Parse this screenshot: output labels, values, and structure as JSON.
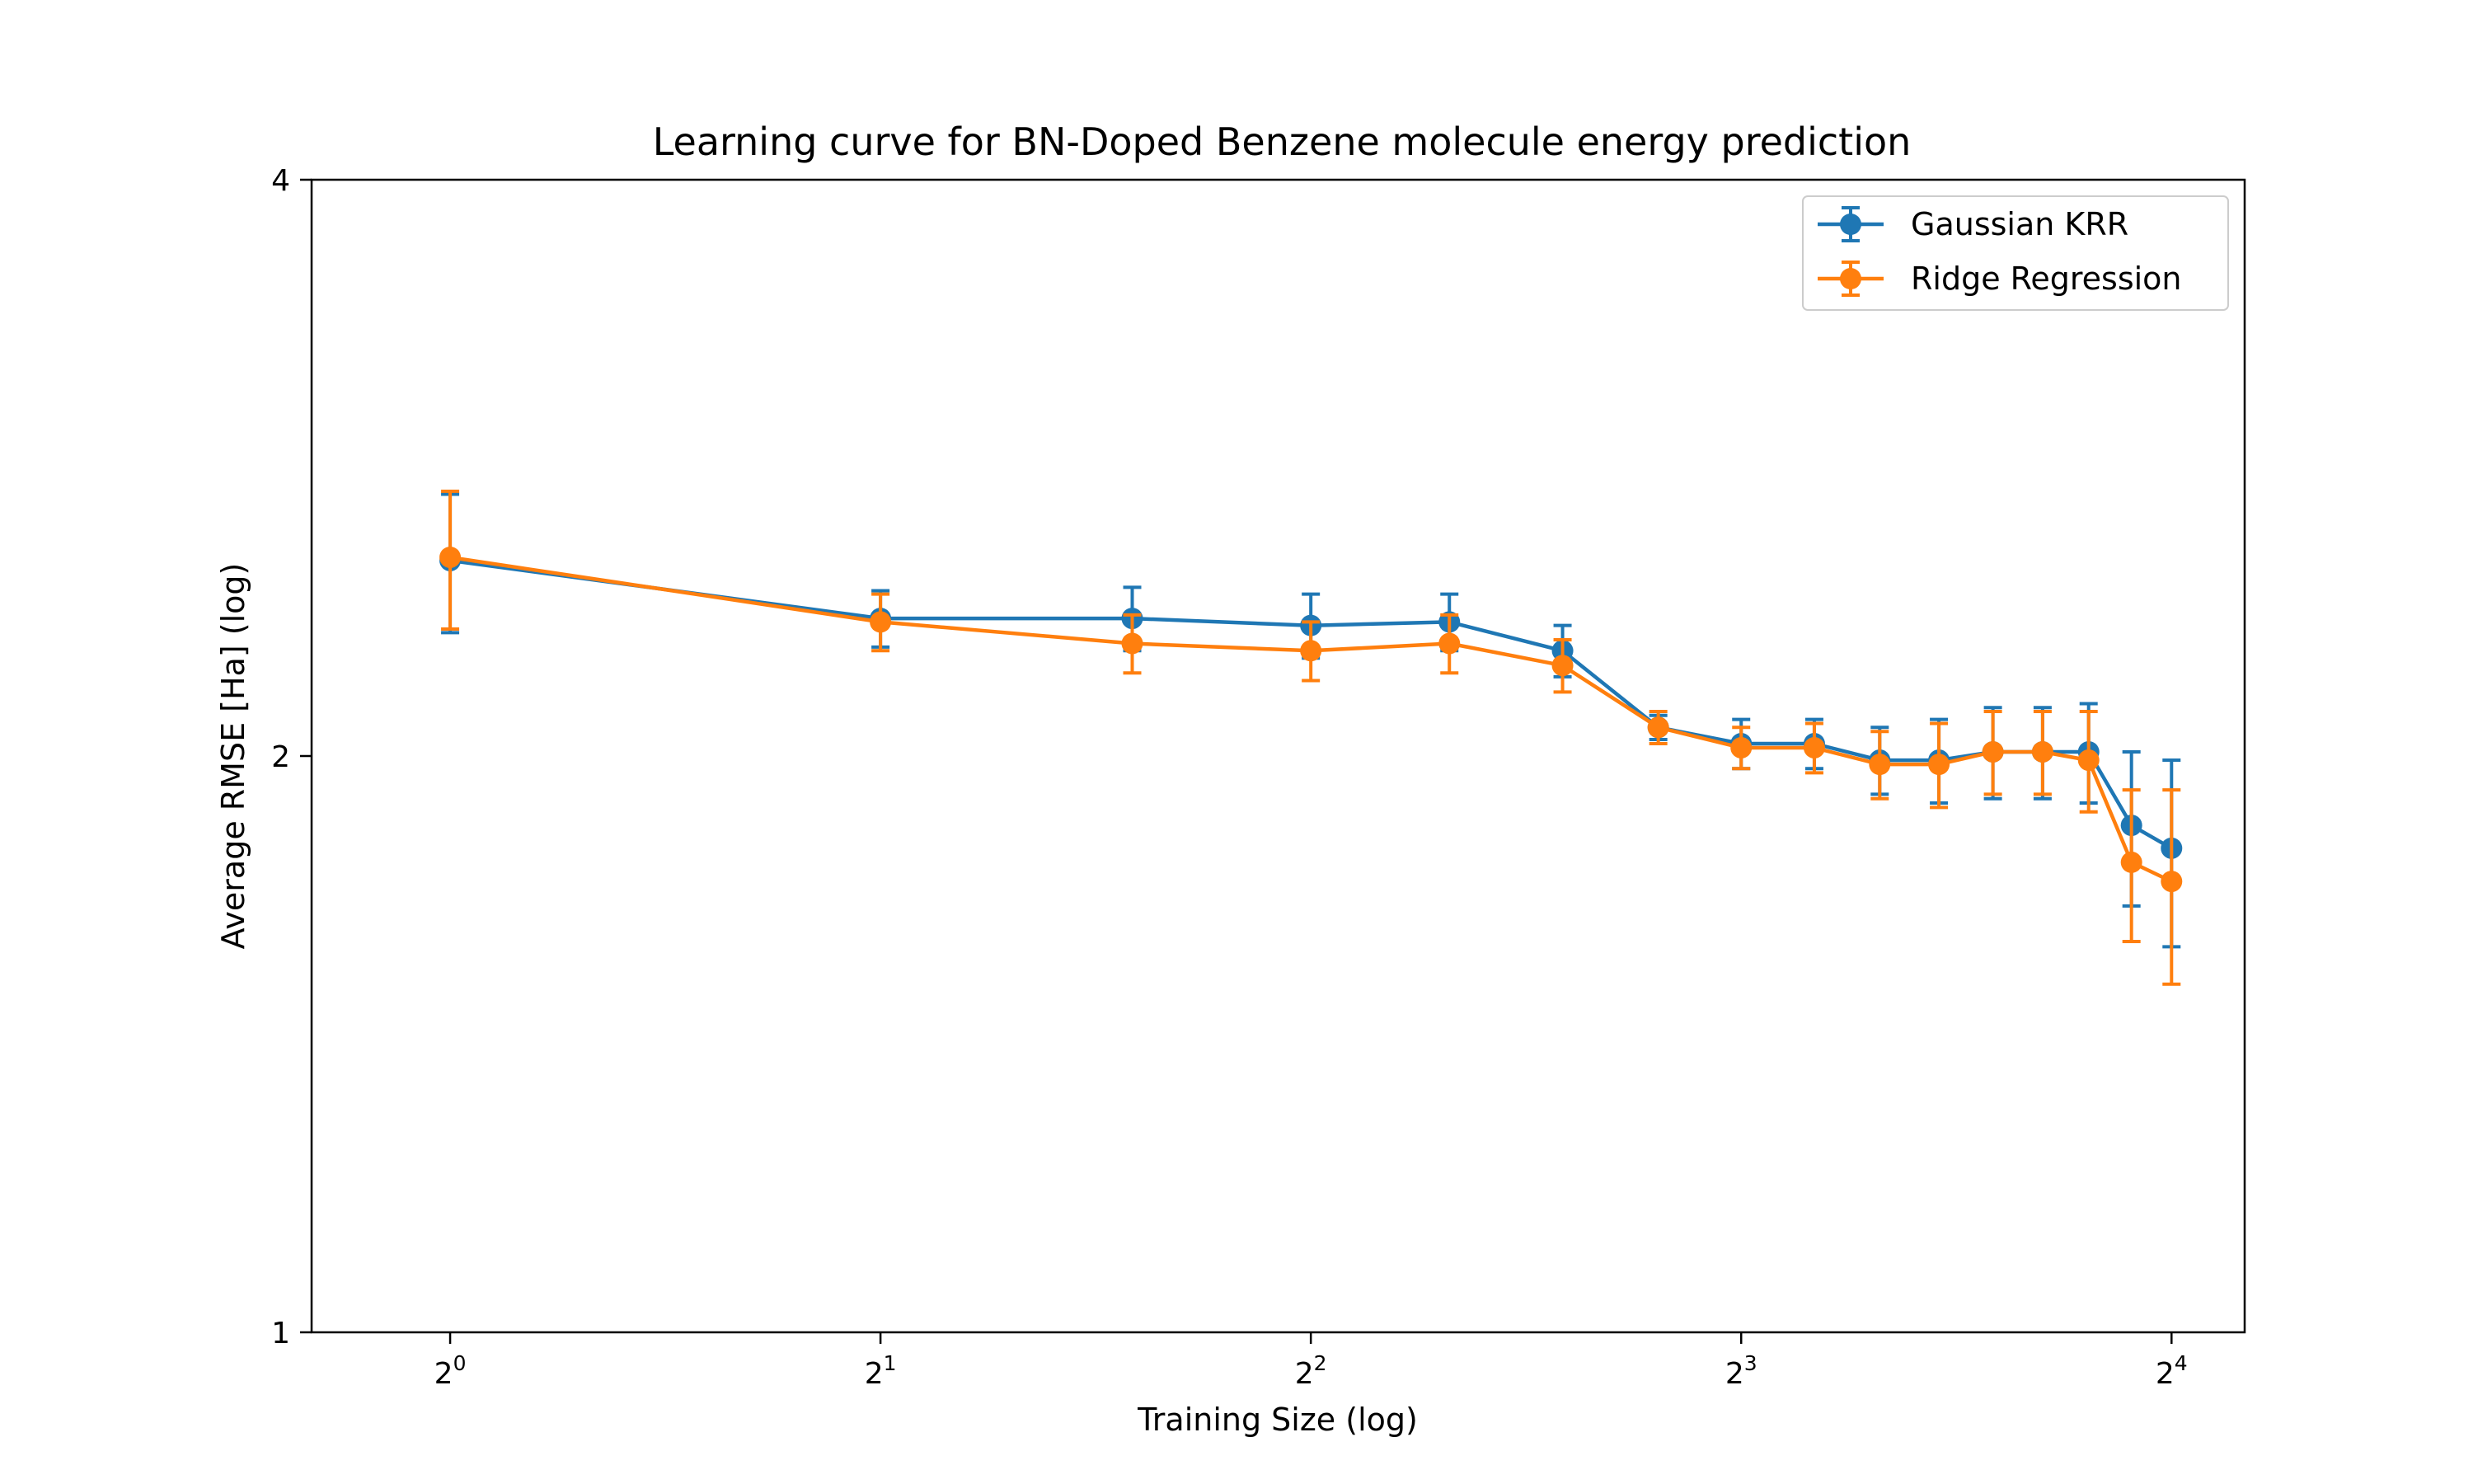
{
  "chart_data": {
    "type": "line",
    "title": "Learning curve for BN-Doped Benzene molecule energy prediction",
    "xlabel": "Training Size (log)",
    "ylabel": "Average RMSE [Ha] (log)",
    "x_scale": "log2",
    "y_scale": "log2",
    "xlim": [
      0.8,
      18.0
    ],
    "ylim": [
      1,
      4
    ],
    "x_ticks": [
      {
        "value": 1,
        "base": "2",
        "exp": "0"
      },
      {
        "value": 2,
        "base": "2",
        "exp": "1"
      },
      {
        "value": 4,
        "base": "2",
        "exp": "2"
      },
      {
        "value": 8,
        "base": "2",
        "exp": "3"
      },
      {
        "value": 16,
        "base": "2",
        "exp": "4"
      }
    ],
    "y_ticks": [
      {
        "value": 1,
        "label": "1"
      },
      {
        "value": 2,
        "label": "2"
      },
      {
        "value": 4,
        "label": "4"
      }
    ],
    "grid": false,
    "legend_position": "top-right",
    "x": [
      1,
      2,
      3,
      4,
      5,
      6,
      7,
      8,
      9,
      10,
      11,
      12,
      13,
      14,
      15,
      16
    ],
    "series": [
      {
        "name": "Gaussian KRR",
        "color": "#1f77b4",
        "values": [
          2.53,
          2.36,
          2.36,
          2.34,
          2.35,
          2.27,
          2.07,
          2.03,
          2.03,
          1.99,
          1.99,
          2.01,
          2.01,
          2.01,
          1.84,
          1.79
        ],
        "errors": [
          0.21,
          0.08,
          0.09,
          0.09,
          0.08,
          0.07,
          0.03,
          0.06,
          0.06,
          0.08,
          0.1,
          0.11,
          0.11,
          0.12,
          0.17,
          0.2
        ]
      },
      {
        "name": "Ridge Regression",
        "color": "#ff7f0e",
        "values": [
          2.54,
          2.35,
          2.29,
          2.27,
          2.29,
          2.23,
          2.07,
          2.02,
          2.02,
          1.98,
          1.98,
          2.01,
          2.01,
          1.99,
          1.76,
          1.72
        ],
        "errors": [
          0.21,
          0.08,
          0.08,
          0.08,
          0.08,
          0.07,
          0.04,
          0.05,
          0.06,
          0.08,
          0.1,
          0.1,
          0.1,
          0.12,
          0.16,
          0.2
        ]
      }
    ]
  }
}
